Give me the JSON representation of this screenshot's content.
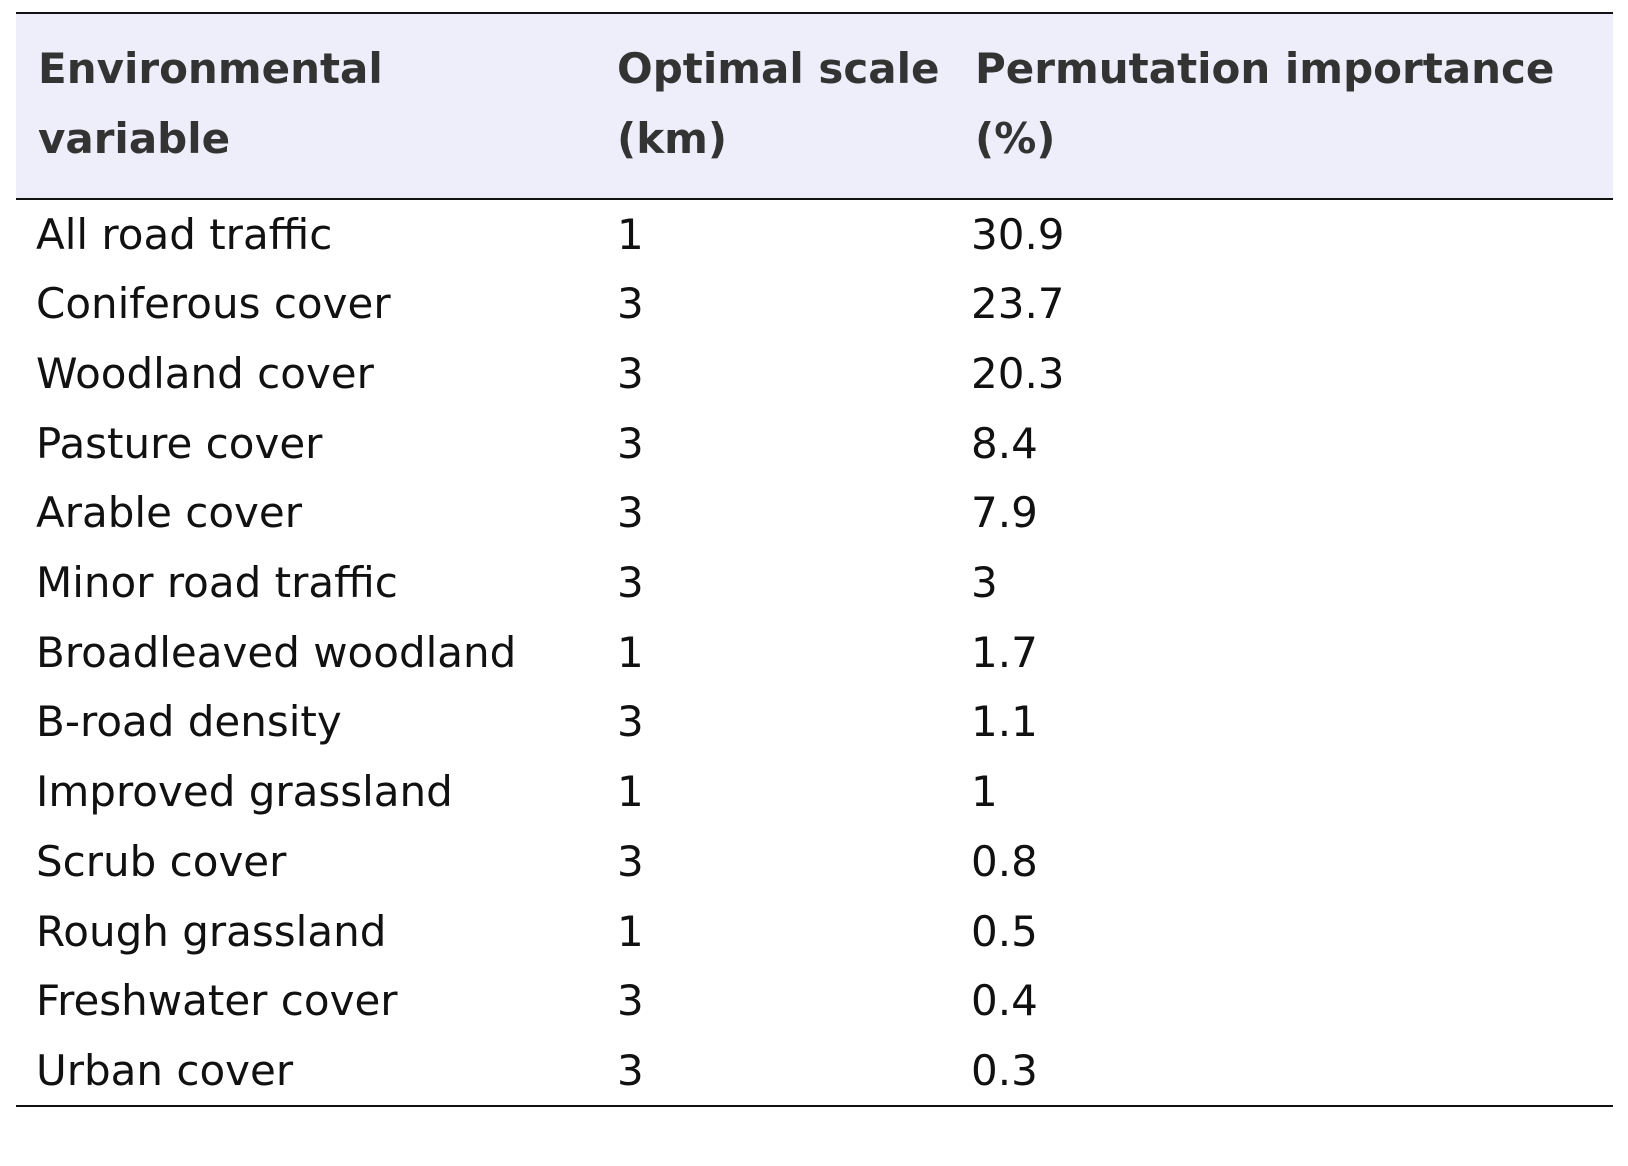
{
  "table": {
    "headers": [
      "Environmental variable",
      "Optimal scale (km)",
      "Permutation importance (%)"
    ],
    "rows": [
      [
        "All road traffic",
        "1",
        "30.9"
      ],
      [
        "Coniferous cover",
        "3",
        "23.7"
      ],
      [
        "Woodland cover",
        "3",
        "20.3"
      ],
      [
        "Pasture cover",
        "3",
        "8.4"
      ],
      [
        "Arable cover",
        "3",
        "7.9"
      ],
      [
        "Minor road traffic",
        "3",
        "3"
      ],
      [
        "Broadleaved woodland",
        "1",
        "1.7"
      ],
      [
        "B-road density",
        "3",
        "1.1"
      ],
      [
        "Improved grassland",
        "1",
        "1"
      ],
      [
        "Scrub cover",
        "3",
        "0.8"
      ],
      [
        "Rough grassland",
        "1",
        "0.5"
      ],
      [
        "Freshwater cover",
        "3",
        "0.4"
      ],
      [
        "Urban cover",
        "3",
        "0.3"
      ]
    ]
  },
  "colors": {
    "header_background": "#eeeefb",
    "header_text": "#333333",
    "body_text": "#111111",
    "rule": "#111111"
  }
}
